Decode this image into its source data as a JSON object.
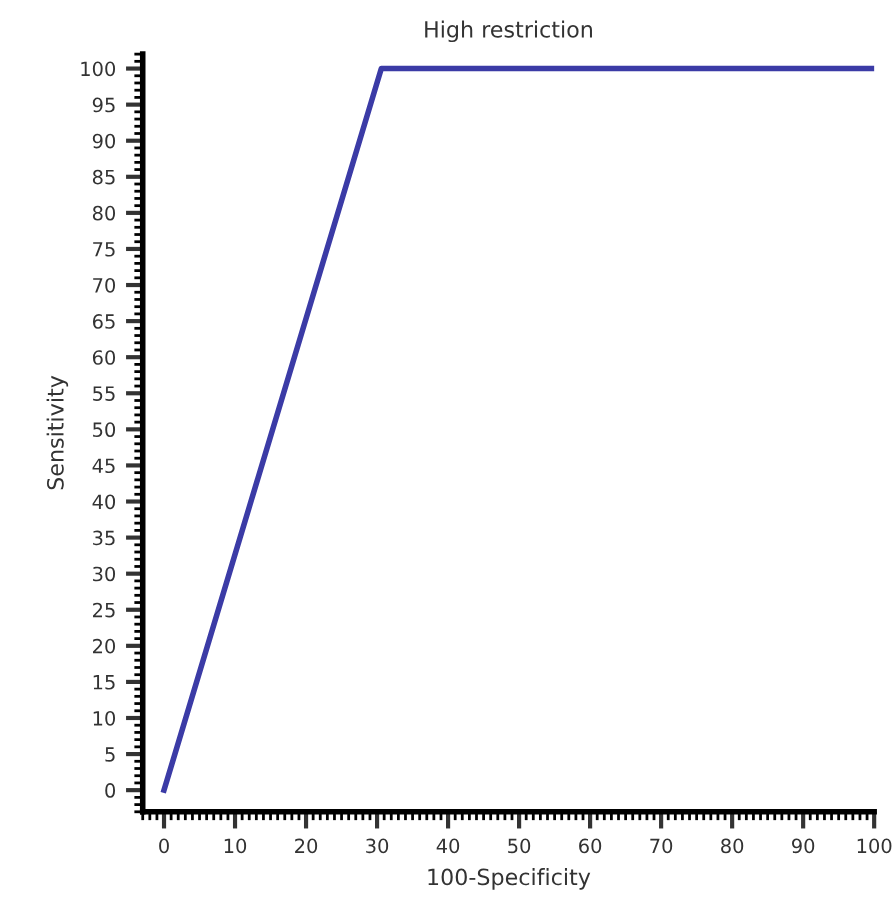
{
  "chart_data": {
    "type": "line",
    "title": "High restriction",
    "xlabel": "100-Specificity",
    "ylabel": "Sensitivity",
    "x": [
      0,
      30.6,
      100
    ],
    "series": [
      {
        "color": "#3b3ba6",
        "values": [
          0,
          100,
          100
        ]
      }
    ],
    "xlim": [
      -3,
      100
    ],
    "ylim": [
      -3,
      102
    ],
    "xticks": [
      0,
      10,
      20,
      30,
      40,
      50,
      60,
      70,
      80,
      90,
      100
    ],
    "yticks": [
      0,
      5,
      10,
      15,
      20,
      25,
      30,
      35,
      40,
      45,
      50,
      55,
      60,
      65,
      70,
      75,
      80,
      85,
      90,
      95,
      100
    ],
    "grid": false,
    "legend": false,
    "marker": "none",
    "line_style": "solid"
  }
}
